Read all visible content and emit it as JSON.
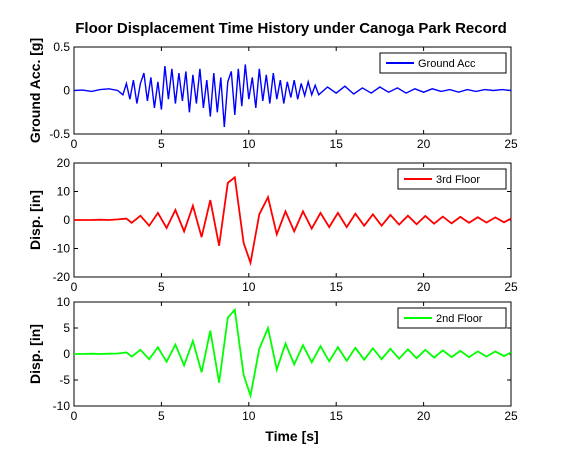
{
  "figure": {
    "title": "Floor Displacement Time History under Canoga Park Record",
    "xlabel": "Time [s]"
  },
  "chart_data": [
    {
      "type": "line",
      "ylabel": "Ground Acc. [g]",
      "xlim": [
        0,
        25
      ],
      "ylim": [
        -0.5,
        0.5
      ],
      "xticks": [
        "0",
        "5",
        "10",
        "15",
        "20",
        "25"
      ],
      "yticks": [
        "-0.5",
        "0",
        "0.5"
      ],
      "yticks_values": [
        -0.5,
        0,
        0.5
      ],
      "grid": false,
      "legend_position": "top-right",
      "color": "#0000ff",
      "series": [
        {
          "name": "Ground Acc",
          "x": [
            0,
            0.5,
            1,
            1.5,
            2,
            2.5,
            2.8,
            3,
            3.2,
            3.4,
            3.6,
            3.8,
            4,
            4.2,
            4.4,
            4.6,
            4.8,
            5,
            5.2,
            5.4,
            5.6,
            5.8,
            6,
            6.2,
            6.4,
            6.6,
            6.8,
            7,
            7.2,
            7.4,
            7.6,
            7.8,
            8,
            8.2,
            8.4,
            8.6,
            8.8,
            9,
            9.2,
            9.4,
            9.6,
            9.8,
            10,
            10.2,
            10.4,
            10.6,
            10.8,
            11,
            11.2,
            11.4,
            11.6,
            11.8,
            12,
            12.2,
            12.4,
            12.6,
            12.8,
            13,
            13.2,
            13.4,
            13.6,
            13.8,
            14,
            14.5,
            15,
            15.5,
            16,
            16.5,
            17,
            17.5,
            18,
            18.5,
            19,
            19.5,
            20,
            20.5,
            21,
            21.5,
            22,
            22.5,
            23,
            23.5,
            24,
            24.5,
            25
          ],
          "y": [
            0,
            0.005,
            -0.01,
            0.01,
            0.02,
            0,
            -0.05,
            0.08,
            -0.1,
            0.12,
            -0.15,
            0.08,
            0.2,
            -0.12,
            0.15,
            -0.2,
            0.1,
            -0.22,
            0.28,
            -0.1,
            0.25,
            -0.15,
            0.2,
            -0.12,
            0.22,
            -0.25,
            0.18,
            -0.15,
            0.25,
            -0.2,
            0.12,
            -0.3,
            0.2,
            -0.25,
            0.15,
            -0.42,
            0.1,
            0.22,
            -0.28,
            0.25,
            -0.18,
            0.3,
            -0.1,
            0.15,
            -0.2,
            0.25,
            -0.12,
            0.18,
            -0.15,
            0.2,
            -0.1,
            0.12,
            -0.15,
            0.1,
            -0.08,
            0.12,
            -0.1,
            0.08,
            -0.06,
            0.1,
            -0.05,
            0.06,
            -0.05,
            0.04,
            -0.03,
            0.05,
            -0.04,
            0.03,
            -0.03,
            0.04,
            -0.02,
            0.03,
            -0.03,
            0.02,
            -0.02,
            0.02,
            -0.01,
            0.01,
            -0.02,
            0.01,
            -0.01,
            0.01,
            0,
            0.01,
            0
          ]
        }
      ]
    },
    {
      "type": "line",
      "ylabel": "Disp. [in]",
      "xlim": [
        0,
        25
      ],
      "ylim": [
        -20,
        20
      ],
      "xticks": [
        "0",
        "5",
        "10",
        "15",
        "20",
        "25"
      ],
      "yticks": [
        "-20",
        "-10",
        "0",
        "10",
        "20"
      ],
      "yticks_values": [
        -20,
        -10,
        0,
        10,
        20
      ],
      "grid": false,
      "legend_position": "top-right",
      "color": "#ff0000",
      "series": [
        {
          "name": "3rd Floor",
          "x": [
            0,
            0.5,
            1,
            1.5,
            2,
            2.5,
            3,
            3.3,
            3.8,
            4.3,
            4.8,
            5.3,
            5.8,
            6.3,
            6.8,
            7.3,
            7.8,
            8.3,
            8.8,
            9.2,
            9.7,
            10.1,
            10.6,
            11.1,
            11.6,
            12.1,
            12.6,
            13.1,
            13.6,
            14.1,
            14.6,
            15.1,
            15.6,
            16.1,
            16.6,
            17.1,
            17.6,
            18.1,
            18.6,
            19.1,
            19.6,
            20.1,
            20.6,
            21.1,
            21.6,
            22.1,
            22.6,
            23.1,
            23.6,
            24.1,
            24.6,
            25
          ],
          "y": [
            0,
            0,
            0,
            0.1,
            0,
            0.2,
            0.5,
            -1,
            1.5,
            -2,
            2.5,
            -2.8,
            3.5,
            -4,
            5,
            -6,
            7,
            -9,
            13,
            15,
            -8,
            -15,
            2,
            8,
            -5,
            3,
            -4,
            3,
            -3,
            2.5,
            -2.5,
            2.5,
            -2.5,
            2.2,
            -2,
            2,
            -2,
            1.8,
            -1.6,
            1.5,
            -1.5,
            1.4,
            -1.3,
            1.2,
            -1.2,
            1.1,
            -1,
            1,
            -0.9,
            0.9,
            -0.8,
            0.5
          ]
        }
      ]
    },
    {
      "type": "line",
      "ylabel": "Disp. [in]",
      "xlim": [
        0,
        25
      ],
      "ylim": [
        -10,
        10
      ],
      "xticks": [
        "0",
        "5",
        "10",
        "15",
        "20",
        "25"
      ],
      "yticks": [
        "-10",
        "-5",
        "0",
        "5",
        "10"
      ],
      "yticks_values": [
        -10,
        -5,
        0,
        5,
        10
      ],
      "grid": false,
      "legend_position": "top-right",
      "color": "#00ff00",
      "series": [
        {
          "name": "2nd Floor",
          "x": [
            0,
            0.5,
            1,
            1.5,
            2,
            2.5,
            3,
            3.3,
            3.8,
            4.3,
            4.8,
            5.3,
            5.8,
            6.3,
            6.8,
            7.3,
            7.8,
            8.3,
            8.8,
            9.2,
            9.7,
            10.1,
            10.6,
            11.1,
            11.6,
            12.1,
            12.6,
            13.1,
            13.6,
            14.1,
            14.6,
            15.1,
            15.6,
            16.1,
            16.6,
            17.1,
            17.6,
            18.1,
            18.6,
            19.1,
            19.6,
            20.1,
            20.6,
            21.1,
            21.6,
            22.1,
            22.6,
            23.1,
            23.6,
            24.1,
            24.6,
            25
          ],
          "y": [
            0,
            0,
            0.05,
            0,
            0.05,
            0.1,
            0.3,
            -0.5,
            0.8,
            -1,
            1.3,
            -1.5,
            1.8,
            -2.2,
            2.5,
            -3.5,
            4.5,
            -5.5,
            7,
            8.5,
            -4,
            -8,
            1,
            5,
            -3,
            2,
            -2,
            1.7,
            -1.6,
            1.5,
            -1.4,
            1.3,
            -1.3,
            1.2,
            -1.1,
            1.1,
            -1,
            1,
            -0.9,
            0.9,
            -0.8,
            0.8,
            -0.7,
            0.7,
            -0.6,
            0.6,
            -0.6,
            0.5,
            -0.5,
            0.5,
            -0.4,
            0.3
          ]
        }
      ]
    }
  ]
}
